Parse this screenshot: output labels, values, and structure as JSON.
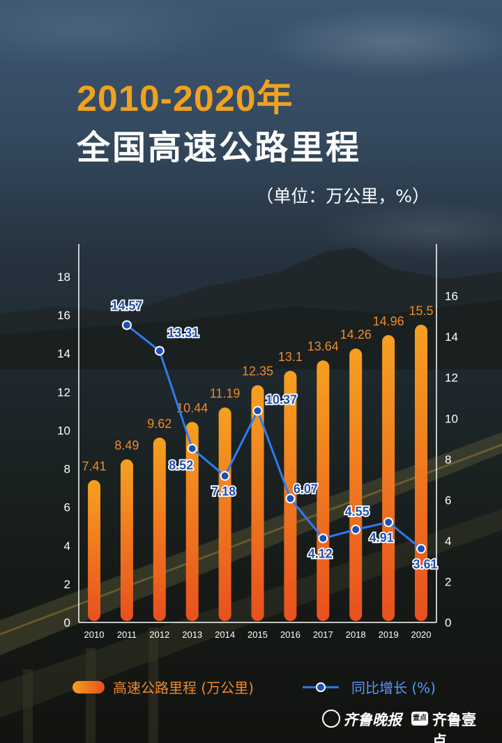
{
  "header": {
    "title_line1": "2010-2020年",
    "title_line2": "全国高速公路里程",
    "unit_note": "（单位：万公里，%）"
  },
  "legend": {
    "bar_label": "高速公路里程 (万公里)",
    "line_label": "同比增长 (%)"
  },
  "brand": {
    "name1": "齐鲁晚报",
    "logo2_text": "壹点",
    "name2": "齐鲁壹点"
  },
  "colors": {
    "title_accent": "#f0a21e",
    "bar_top": "#f6a020",
    "bar_bottom": "#e8501e",
    "bar_label": "#f08a2a",
    "line": "#2f7bf0",
    "line_label": "#1f4fb4"
  },
  "chart_data": {
    "type": "bar",
    "categories": [
      "2010",
      "2011",
      "2012",
      "2013",
      "2014",
      "2015",
      "2016",
      "2017",
      "2018",
      "2019",
      "2020"
    ],
    "series": [
      {
        "name": "高速公路里程 (万公里)",
        "type": "bar",
        "axis": "left",
        "values": [
          7.41,
          8.49,
          9.62,
          10.44,
          11.19,
          12.35,
          13.1,
          13.64,
          14.26,
          14.96,
          15.5
        ],
        "labels": [
          "7.41",
          "8.49",
          "9.62",
          "10.44",
          "11.19",
          "12.35",
          "13.1",
          "13.64",
          "14.26",
          "14.96",
          "15.5"
        ]
      },
      {
        "name": "同比增长 (%)",
        "type": "line",
        "axis": "right",
        "values": [
          null,
          14.57,
          13.31,
          8.52,
          7.18,
          10.37,
          6.07,
          4.12,
          4.55,
          4.91,
          3.61
        ],
        "labels": [
          "",
          "14.57",
          "13.31",
          "8.52",
          "7.18",
          "10.37",
          "6.07",
          "4.12",
          "4.55",
          "4.91",
          "3.61"
        ]
      }
    ],
    "y_left": {
      "ylim": [
        0,
        19.4
      ],
      "ticks": [
        "0",
        "2",
        "4",
        "6",
        "8",
        "10",
        "12",
        "14",
        "16",
        "18"
      ]
    },
    "y_right": {
      "ylim": [
        0,
        18.2
      ],
      "ticks": [
        "0",
        "2",
        "4",
        "6",
        "8",
        "10",
        "12",
        "14",
        "16"
      ]
    },
    "grid": false,
    "legend_position": "bottom"
  }
}
